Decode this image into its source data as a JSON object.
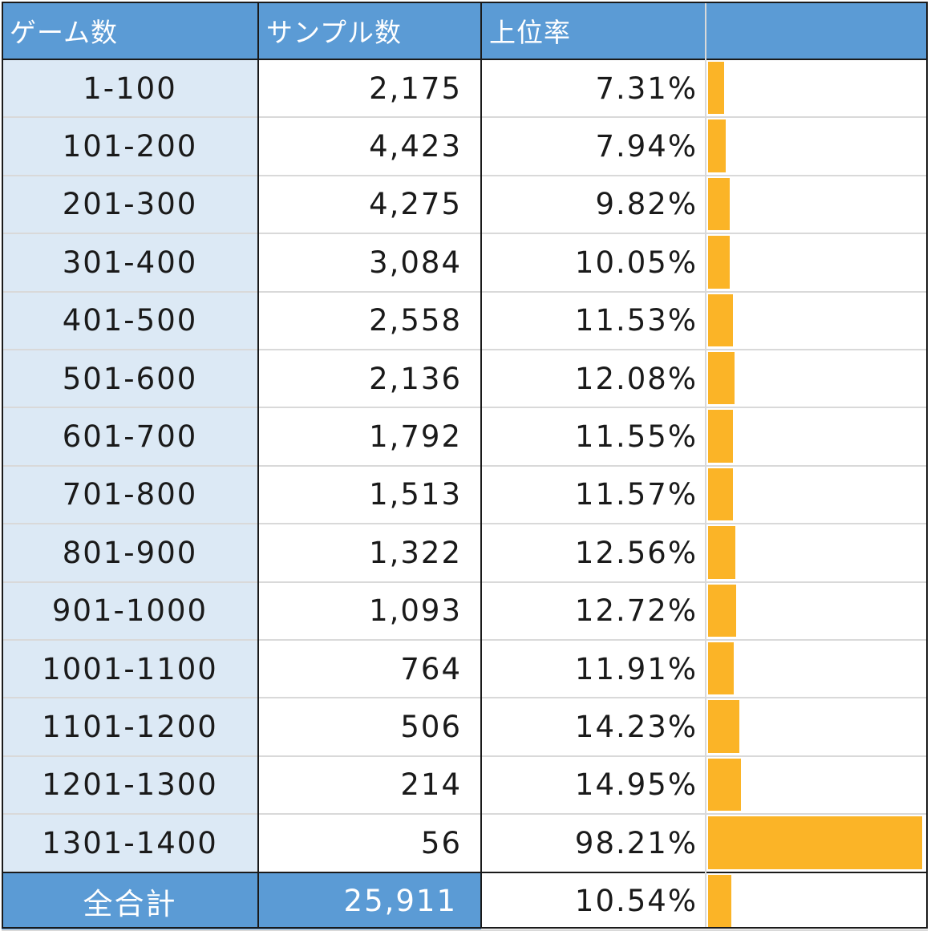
{
  "table": {
    "headers": [
      "ゲーム数",
      "サンプル数",
      "上位率",
      ""
    ],
    "rows": [
      {
        "games": "1-100",
        "samples": "2,175",
        "rate": "7.31%",
        "rate_value": 7.31
      },
      {
        "games": "101-200",
        "samples": "4,423",
        "rate": "7.94%",
        "rate_value": 7.94
      },
      {
        "games": "201-300",
        "samples": "4,275",
        "rate": "9.82%",
        "rate_value": 9.82
      },
      {
        "games": "301-400",
        "samples": "3,084",
        "rate": "10.05%",
        "rate_value": 10.05
      },
      {
        "games": "401-500",
        "samples": "2,558",
        "rate": "11.53%",
        "rate_value": 11.53
      },
      {
        "games": "501-600",
        "samples": "2,136",
        "rate": "12.08%",
        "rate_value": 12.08
      },
      {
        "games": "601-700",
        "samples": "1,792",
        "rate": "11.55%",
        "rate_value": 11.55
      },
      {
        "games": "701-800",
        "samples": "1,513",
        "rate": "11.57%",
        "rate_value": 11.57
      },
      {
        "games": "801-900",
        "samples": "1,322",
        "rate": "12.56%",
        "rate_value": 12.56
      },
      {
        "games": "901-1000",
        "samples": "1,093",
        "rate": "12.72%",
        "rate_value": 12.72
      },
      {
        "games": "1001-1100",
        "samples": "764",
        "rate": "11.91%",
        "rate_value": 11.91
      },
      {
        "games": "1101-1200",
        "samples": "506",
        "rate": "14.23%",
        "rate_value": 14.23
      },
      {
        "games": "1201-1300",
        "samples": "214",
        "rate": "14.95%",
        "rate_value": 14.95
      },
      {
        "games": "1301-1400",
        "samples": "56",
        "rate": "98.21%",
        "rate_value": 98.21
      }
    ],
    "total": {
      "games": "全合計",
      "samples": "25,911",
      "rate": "10.54%",
      "rate_value": 10.54
    },
    "bar_max_value": 100,
    "colors": {
      "header_bg": "#5b9bd5",
      "first_col_bg": "#dce9f5",
      "bar": "#fbb427"
    }
  }
}
